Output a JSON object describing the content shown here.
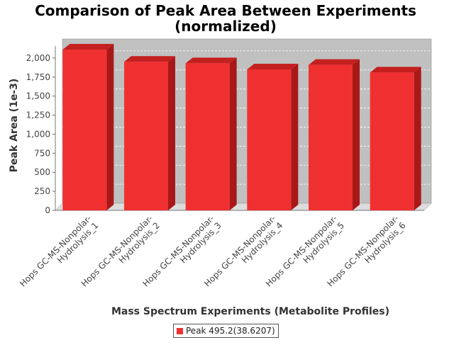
{
  "chart_data": {
    "type": "bar",
    "title_lines": [
      "Comparison of Peak Area Between Experiments",
      "(normalized)"
    ],
    "xlabel": "Mass Spectrum Experiments (Metabolite Profiles)",
    "ylabel": "Peak Area (1e-3)",
    "ylim": [
      0,
      2250
    ],
    "yticks": [
      0,
      250,
      500,
      750,
      1000,
      1250,
      1500,
      1750,
      2000
    ],
    "ytick_labels": [
      "0",
      "250",
      "500",
      "750",
      "1,000",
      "1,250",
      "1,500",
      "1,750",
      "2,000"
    ],
    "categories": [
      "Hops GC-MS-Nonpolar-Hydrolysis_1",
      "Hops GC-MS-Nonpolar-Hydrolysis_2",
      "Hops GC-MS-Nonpolar-Hydrolysis_3",
      "Hops GC-MS-Nonpolar-Hydrolysis_4",
      "Hops GC-MS-Nonpolar-Hydrolysis_5",
      "Hops GC-MS-Nonpolar-Hydrolysis_6"
    ],
    "category_lines": [
      [
        "Hops GC-MS-Nonpolar-",
        "Hydrolysis_1"
      ],
      [
        "Hops GC-MS-Nonpolar-",
        "Hydrolysis_2"
      ],
      [
        "Hops GC-MS-Nonpolar-",
        "Hydrolysis_3"
      ],
      [
        "Hops GC-MS-Nonpolar-",
        "Hydrolysis_4"
      ],
      [
        "Hops GC-MS-Nonpolar-",
        "Hydrolysis_5"
      ],
      [
        "Hops GC-MS-Nonpolar-",
        "Hydrolysis_6"
      ]
    ],
    "series": [
      {
        "name": "Peak 495.2(38.6207)",
        "values": [
          2110,
          1950,
          1930,
          1850,
          1910,
          1810
        ]
      }
    ],
    "grid": true,
    "legend_position": "bottom",
    "colors": {
      "bar_front": "#f03030",
      "bar_top": "#c42020",
      "bar_side": "#a81818",
      "plot_bg": "#c0c0c0"
    }
  }
}
